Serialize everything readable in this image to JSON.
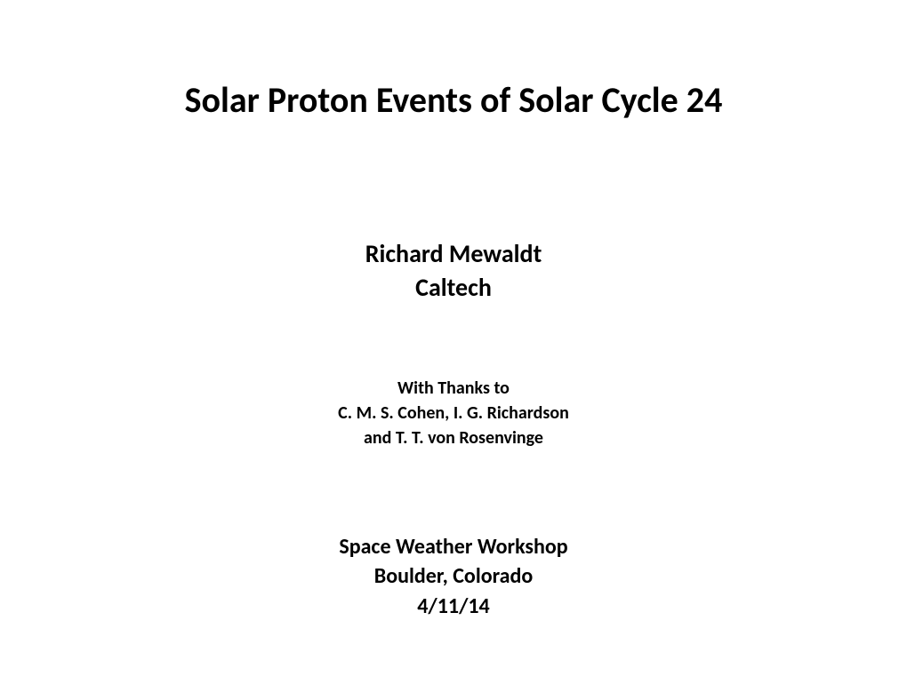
{
  "title": "Solar Proton Events of Solar Cycle 24",
  "author": {
    "name": "Richard Mewaldt",
    "affiliation": "Caltech"
  },
  "thanks": {
    "line1": "With Thanks to",
    "line2": "C. M. S. Cohen, I. G. Richardson",
    "line3": "and T. T. von Rosenvinge"
  },
  "venue": {
    "event": "Space Weather Workshop",
    "location": "Boulder, Colorado",
    "date": "4/11/14"
  },
  "style": {
    "background_color": "#ffffff",
    "text_color": "#000000",
    "title_fontsize": 40,
    "author_fontsize": 28,
    "thanks_fontsize": 20,
    "venue_fontsize": 24,
    "font_family": "Calibri",
    "font_weight": "bold"
  }
}
